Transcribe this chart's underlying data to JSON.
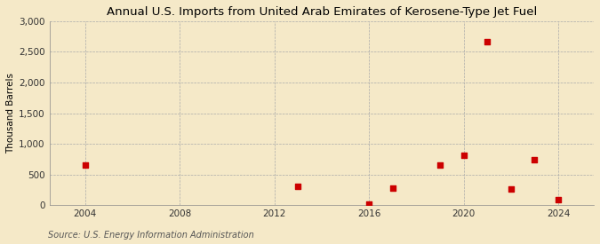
{
  "title": "Annual U.S. Imports from United Arab Emirates of Kerosene-Type Jet Fuel",
  "ylabel": "Thousand Barrels",
  "source": "Source: U.S. Energy Information Administration",
  "background_color": "#f5e9c8",
  "plot_bg_color": "#f5e9c8",
  "data_points": [
    {
      "year": 2004,
      "value": 650
    },
    {
      "year": 2013,
      "value": 310
    },
    {
      "year": 2016,
      "value": 15
    },
    {
      "year": 2017,
      "value": 280
    },
    {
      "year": 2019,
      "value": 650
    },
    {
      "year": 2020,
      "value": 820
    },
    {
      "year": 2021,
      "value": 2660
    },
    {
      "year": 2022,
      "value": 270
    },
    {
      "year": 2023,
      "value": 740
    },
    {
      "year": 2024,
      "value": 90
    }
  ],
  "marker_color": "#cc0000",
  "marker": "s",
  "marker_size": 4,
  "xlim": [
    2002.5,
    2025.5
  ],
  "ylim": [
    0,
    3000
  ],
  "xticks": [
    2004,
    2008,
    2012,
    2016,
    2020,
    2024
  ],
  "yticks": [
    0,
    500,
    1000,
    1500,
    2000,
    2500,
    3000
  ],
  "ytick_labels": [
    "0",
    "500",
    "1,000",
    "1,500",
    "2,000",
    "2,500",
    "3,000"
  ],
  "grid_color": "#aaaaaa",
  "grid_linestyle": "--",
  "grid_linewidth": 0.5,
  "title_fontsize": 9.5,
  "label_fontsize": 7.5,
  "tick_fontsize": 7.5,
  "source_fontsize": 7
}
